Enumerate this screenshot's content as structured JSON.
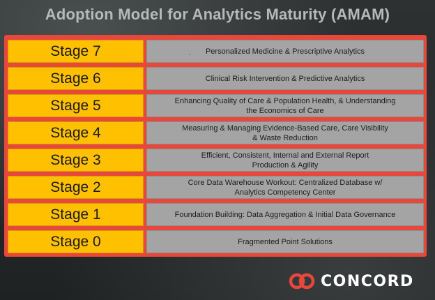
{
  "title": "Adoption Model for Analytics Maturity (AMAM)",
  "stages": [
    {
      "label": "Stage 7",
      "description": "Personalized Medicine & Prescriptive Analytics",
      "marker": "."
    },
    {
      "label": "Stage 6",
      "description": "Clinical Risk Intervention & Predictive Analytics"
    },
    {
      "label": "Stage 5",
      "description": "Enhancing Quality of Care & Population Health, & Understanding\nthe Economics of Care"
    },
    {
      "label": "Stage 4",
      "description": "Measuring & Managing Evidence-Based Care, Care Visibility\n& Waste Reduction"
    },
    {
      "label": "Stage 3",
      "description": "Efficient, Consistent, Internal and External Report\nProduction & Agility"
    },
    {
      "label": "Stage 2",
      "description": "Core Data Warehouse Workout: Centralized Database w/\nAnalytics Competency Center"
    },
    {
      "label": "Stage 1",
      "description": "Foundation Building: Data Aggregation & Initial Data Governance"
    },
    {
      "label": "Stage 0",
      "description": "Fragmented Point Solutions"
    }
  ],
  "logo": {
    "text": "CONCORD",
    "icon": "concord-logo-icon",
    "icon_color": "#e8473c"
  }
}
